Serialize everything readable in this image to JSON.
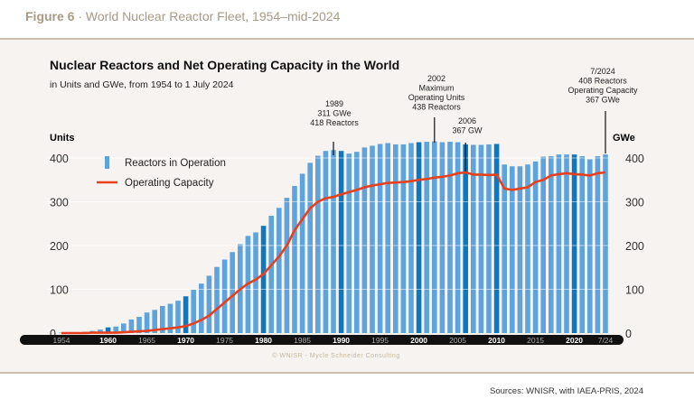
{
  "figure": {
    "label": "Figure 6",
    "title": "World Nuclear Reactor Fleet, 1954–mid-2024"
  },
  "sources": "Sources: WNISR, with IAEA-PRIS, 2024",
  "copyright": "© WNISR - Mycle Schneider Consulting",
  "chart_data": {
    "type": "bar+line",
    "title": "Nuclear Reactors and Net Operating Capacity in the World",
    "subtitle": "in Units and GWe, from 1954 to 1 July 2024",
    "ylabel_left": "Units",
    "ylabel_right": "GWe",
    "ylim": [
      0,
      400
    ],
    "yticks": [
      0,
      100,
      200,
      300,
      400
    ],
    "xtick_labels": [
      "1954",
      "1960",
      "1965",
      "1970",
      "1975",
      "1980",
      "1985",
      "1990",
      "1995",
      "2000",
      "2005",
      "2010",
      "2015",
      "2020",
      "7/24"
    ],
    "legend": {
      "position": "top-left",
      "entries": [
        "Reactors in Operation",
        "Operating Capacity"
      ]
    },
    "colors": {
      "bars": "#5fa3dd",
      "bars_highlight": "#0a78c2",
      "line": "#e8401c"
    },
    "x": [
      1954,
      1955,
      1956,
      1957,
      1958,
      1959,
      1960,
      1961,
      1962,
      1963,
      1964,
      1965,
      1966,
      1967,
      1968,
      1969,
      1970,
      1971,
      1972,
      1973,
      1974,
      1975,
      1976,
      1977,
      1978,
      1979,
      1980,
      1981,
      1982,
      1983,
      1984,
      1985,
      1986,
      1987,
      1988,
      1989,
      1990,
      1991,
      1992,
      1993,
      1994,
      1995,
      1996,
      1997,
      1998,
      1999,
      2000,
      2001,
      2002,
      2003,
      2004,
      2005,
      2006,
      2007,
      2008,
      2009,
      2010,
      2011,
      2012,
      2013,
      2014,
      2015,
      2016,
      2017,
      2018,
      2019,
      2020,
      2021,
      2022,
      2023,
      2024
    ],
    "series": [
      {
        "name": "Reactors in Operation",
        "values": [
          1,
          1,
          2,
          3,
          5,
          8,
          13,
          15,
          22,
          31,
          37,
          47,
          53,
          62,
          67,
          74,
          84,
          99,
          113,
          131,
          151,
          168,
          185,
          203,
          222,
          230,
          245,
          268,
          286,
          309,
          336,
          364,
          389,
          405,
          416,
          418,
          416,
          410,
          414,
          424,
          428,
          432,
          434,
          431,
          431,
          434,
          436,
          437,
          438,
          436,
          437,
          436,
          431,
          430,
          430,
          431,
          432,
          385,
          381,
          381,
          385,
          392,
          403,
          404,
          408,
          408,
          408,
          404,
          397,
          404,
          408
        ]
      },
      {
        "name": "Operating Capacity",
        "values": [
          0,
          0,
          0,
          0,
          1,
          1,
          1,
          1,
          2,
          3,
          4,
          5,
          7,
          9,
          11,
          13,
          16,
          22,
          30,
          40,
          55,
          70,
          85,
          100,
          113,
          122,
          135,
          155,
          175,
          200,
          235,
          260,
          285,
          300,
          308,
          311,
          317,
          322,
          327,
          333,
          337,
          340,
          343,
          344,
          345,
          347,
          350,
          352,
          355,
          357,
          360,
          365,
          367,
          362,
          362,
          361,
          362,
          330,
          327,
          330,
          333,
          345,
          350,
          360,
          363,
          365,
          363,
          362,
          360,
          365,
          367
        ]
      }
    ],
    "annotations": [
      {
        "year": 1989,
        "lines": [
          "1989",
          "311 GWe",
          "418 Reactors"
        ]
      },
      {
        "year": 2002,
        "lines": [
          "2002",
          "Maximum",
          "Operating Units",
          "438 Reactors"
        ]
      },
      {
        "year": 2006,
        "lines": [
          "2006",
          "367 GW"
        ]
      },
      {
        "year": 2024,
        "lines": [
          "7/2024",
          "408  Reactors",
          "Operating Capacity",
          "367 GWe"
        ]
      }
    ]
  }
}
